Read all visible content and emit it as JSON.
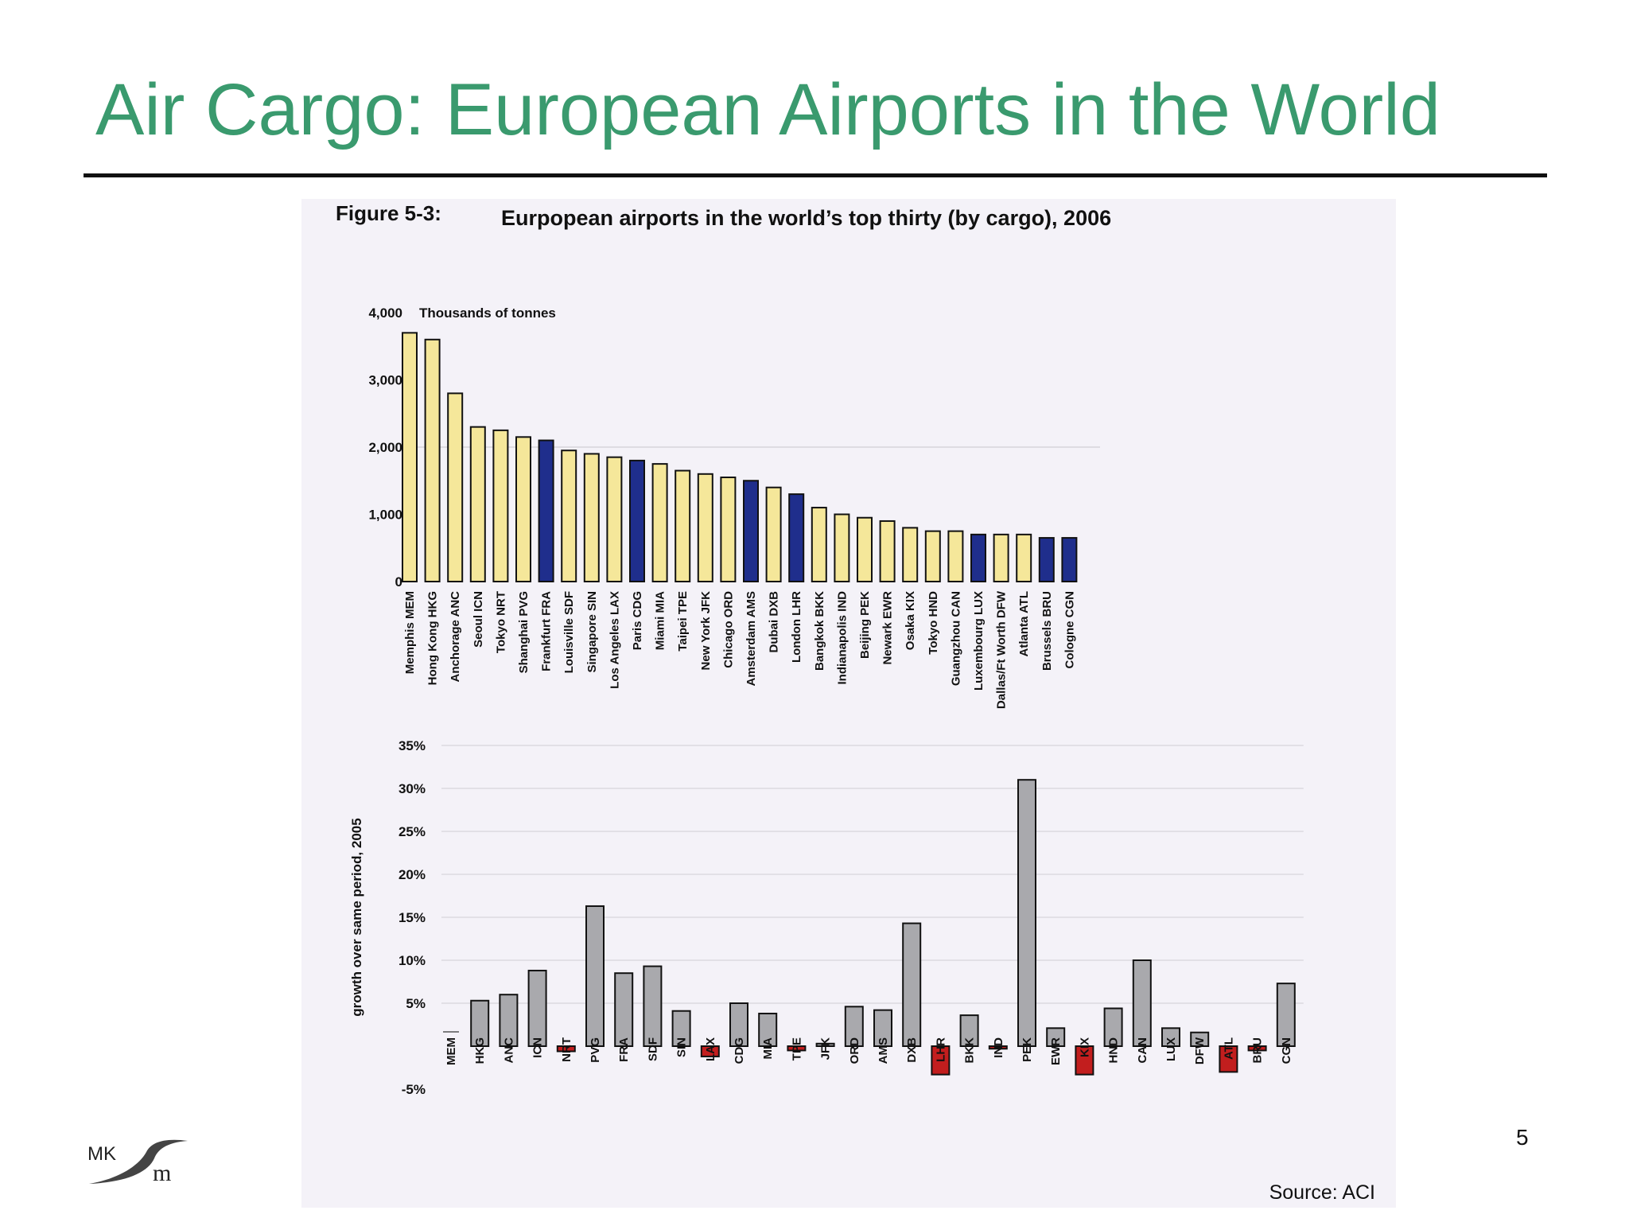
{
  "slide": {
    "title": "Air Cargo: European Airports in the World",
    "page_number": "5",
    "logo_text_left": "MK",
    "logo_text_right": "m"
  },
  "figure": {
    "label": "Figure 5-3:",
    "title": "Eurpopean airports in the world’s top thirty (by cargo), 2006",
    "source": "Source: ACI"
  },
  "colors": {
    "title_green": "#3a9a6e",
    "yellow_bar": "#f5e79a",
    "blue_bar": "#1f2e8c",
    "grey_bar": "#a9a9ad",
    "red_bar": "#c21e1e"
  },
  "chart_data": [
    {
      "type": "bar",
      "title": "Eurpopean airports in the world’s top thirty (by cargo), 2006",
      "unit_label": "Thousands of tonnes",
      "ylim": [
        0,
        4000
      ],
      "yticks": [
        "0",
        "1,000",
        "2,000",
        "3,000",
        "4,000"
      ],
      "yticks_values": [
        0,
        1000,
        2000,
        3000,
        4000
      ],
      "gridline_at": 2000,
      "categories": [
        "Memphis MEM",
        "Hong Kong HKG",
        "Anchorage ANC",
        "Seoul ICN",
        "Tokyo NRT",
        "Shanghai PVG",
        "Frankfurt FRA",
        "Louisville SDF",
        "Singapore SIN",
        "Los Angeles LAX",
        "Paris CDG",
        "Miami MIA",
        "Taipei TPE",
        "New York JFK",
        "Chicago ORD",
        "Amsterdam AMS",
        "Dubai DXB",
        "London LHR",
        "Bangkok BKK",
        "Indianapolis IND",
        "Beijing PEK",
        "Newark EWR",
        "Osaka KIX",
        "Tokyo HND",
        "Guangzhou CAN",
        "Luxembourg LUX",
        "Dallas/Ft Worth DFW",
        "Atlanta ATL",
        "Brussels BRU",
        "Cologne CGN"
      ],
      "values": [
        3700,
        3600,
        2800,
        2300,
        2250,
        2150,
        2100,
        1950,
        1900,
        1850,
        1800,
        1750,
        1650,
        1600,
        1550,
        1500,
        1400,
        1300,
        1100,
        1000,
        950,
        900,
        800,
        750,
        750,
        700,
        700,
        700,
        650,
        650
      ],
      "european": [
        false,
        false,
        false,
        false,
        false,
        false,
        true,
        false,
        false,
        false,
        true,
        false,
        false,
        false,
        false,
        true,
        false,
        true,
        false,
        false,
        false,
        false,
        false,
        false,
        false,
        true,
        false,
        false,
        true,
        true
      ]
    },
    {
      "type": "bar",
      "ylabel": "growth over same period, 2005",
      "ylim": [
        -5,
        35
      ],
      "yticks": [
        "-5%",
        "5%",
        "10%",
        "15%",
        "20%",
        "25%",
        "30%",
        "35%"
      ],
      "yticks_values": [
        -5,
        5,
        10,
        15,
        20,
        25,
        30,
        35
      ],
      "categories": [
        "MEM",
        "HKG",
        "ANC",
        "ICN",
        "NRT",
        "PVG",
        "FRA",
        "SDF",
        "SIN",
        "LAX",
        "CDG",
        "MIA",
        "TPE",
        "JFK",
        "ORD",
        "AMS",
        "DXB",
        "LHR",
        "BKK",
        "IND",
        "PEK",
        "EWR",
        "KIX",
        "HND",
        "CAN",
        "LUX",
        "DFW",
        "ATL",
        "BRU",
        "CGN"
      ],
      "values": [
        0,
        5.3,
        6.0,
        8.8,
        -0.6,
        16.3,
        8.5,
        9.3,
        4.1,
        -1.2,
        5.0,
        3.8,
        -0.5,
        0.3,
        4.6,
        4.2,
        14.3,
        -3.3,
        3.6,
        -0.3,
        31.0,
        2.1,
        -3.3,
        4.4,
        10.0,
        2.1,
        1.6,
        -3.0,
        -0.5,
        7.3
      ]
    }
  ]
}
